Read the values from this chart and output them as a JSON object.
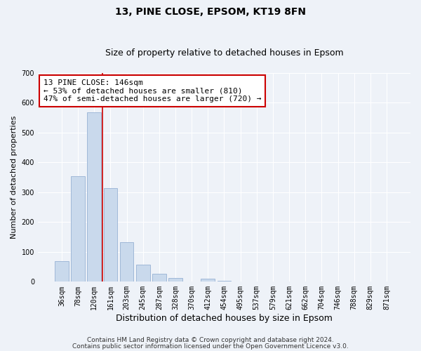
{
  "title": "13, PINE CLOSE, EPSOM, KT19 8FN",
  "subtitle": "Size of property relative to detached houses in Epsom",
  "xlabel": "Distribution of detached houses by size in Epsom",
  "ylabel": "Number of detached properties",
  "bar_labels": [
    "36sqm",
    "78sqm",
    "120sqm",
    "161sqm",
    "203sqm",
    "245sqm",
    "287sqm",
    "328sqm",
    "370sqm",
    "412sqm",
    "454sqm",
    "495sqm",
    "537sqm",
    "579sqm",
    "621sqm",
    "662sqm",
    "704sqm",
    "746sqm",
    "788sqm",
    "829sqm",
    "871sqm"
  ],
  "bar_values": [
    68,
    355,
    568,
    313,
    133,
    57,
    27,
    13,
    0,
    10,
    2,
    0,
    0,
    0,
    0,
    0,
    0,
    0,
    0,
    0,
    0
  ],
  "bar_color": "#c9d9ec",
  "bar_edge_color": "#a0b8d8",
  "reference_line_color": "#cc0000",
  "annotation_line1": "13 PINE CLOSE: 146sqm",
  "annotation_line2": "← 53% of detached houses are smaller (810)",
  "annotation_line3": "47% of semi-detached houses are larger (720) →",
  "annotation_box_color": "#ffffff",
  "annotation_box_edge_color": "#cc0000",
  "ylim": [
    0,
    700
  ],
  "yticks": [
    0,
    100,
    200,
    300,
    400,
    500,
    600,
    700
  ],
  "footer_line1": "Contains HM Land Registry data © Crown copyright and database right 2024.",
  "footer_line2": "Contains public sector information licensed under the Open Government Licence v3.0.",
  "background_color": "#eef2f8",
  "plot_background_color": "#eef2f8",
  "title_fontsize": 10,
  "subtitle_fontsize": 9,
  "xlabel_fontsize": 9,
  "ylabel_fontsize": 8,
  "tick_fontsize": 7,
  "footer_fontsize": 6.5,
  "annotation_fontsize": 8
}
